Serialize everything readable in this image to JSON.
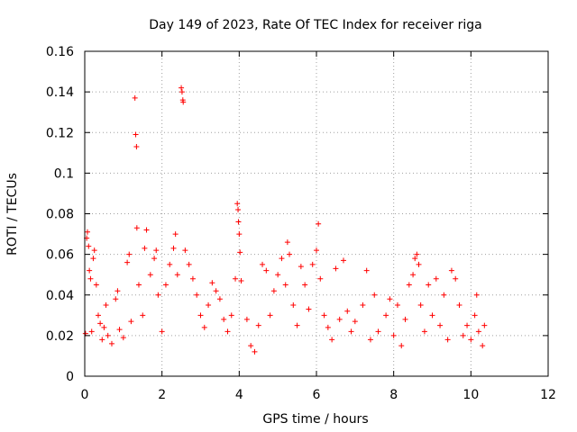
{
  "chart_data": {
    "type": "scatter",
    "title": "Day 149 of 2023, Rate Of TEC Index for receiver riga",
    "xlabel": "GPS time / hours",
    "ylabel": "ROTI / TECUs",
    "xlim": [
      0,
      12
    ],
    "ylim": [
      0,
      0.16
    ],
    "xticks": [
      0,
      2,
      4,
      6,
      8,
      10,
      12
    ],
    "yticks": [
      0,
      0.02,
      0.04,
      0.06,
      0.08,
      0.1,
      0.12,
      0.14,
      0.16
    ],
    "xtick_labels": [
      "0",
      "2",
      "4",
      "6",
      "8",
      "10",
      "12"
    ],
    "ytick_labels": [
      "0",
      "0.02",
      "0.04",
      "0.06",
      "0.08",
      "0.1",
      "0.12",
      "0.14",
      "0.16"
    ],
    "grid": true,
    "marker": "+",
    "color": "#ff0000",
    "series": [
      {
        "name": "ROTI",
        "points": [
          [
            0.02,
            0.021
          ],
          [
            0.05,
            0.068
          ],
          [
            0.07,
            0.071
          ],
          [
            0.1,
            0.064
          ],
          [
            0.12,
            0.052
          ],
          [
            0.15,
            0.048
          ],
          [
            0.18,
            0.022
          ],
          [
            0.22,
            0.058
          ],
          [
            0.25,
            0.062
          ],
          [
            0.3,
            0.045
          ],
          [
            0.35,
            0.03
          ],
          [
            0.4,
            0.026
          ],
          [
            0.45,
            0.018
          ],
          [
            0.5,
            0.024
          ],
          [
            0.55,
            0.035
          ],
          [
            0.6,
            0.02
          ],
          [
            0.7,
            0.016
          ],
          [
            0.8,
            0.038
          ],
          [
            0.85,
            0.042
          ],
          [
            0.9,
            0.023
          ],
          [
            1.0,
            0.019
          ],
          [
            1.1,
            0.056
          ],
          [
            1.15,
            0.06
          ],
          [
            1.2,
            0.027
          ],
          [
            1.3,
            0.137
          ],
          [
            1.32,
            0.119
          ],
          [
            1.34,
            0.113
          ],
          [
            1.35,
            0.073
          ],
          [
            1.4,
            0.045
          ],
          [
            1.5,
            0.03
          ],
          [
            1.55,
            0.063
          ],
          [
            1.6,
            0.072
          ],
          [
            1.7,
            0.05
          ],
          [
            1.8,
            0.058
          ],
          [
            1.85,
            0.062
          ],
          [
            1.9,
            0.04
          ],
          [
            2.0,
            0.022
          ],
          [
            2.1,
            0.045
          ],
          [
            2.2,
            0.055
          ],
          [
            2.3,
            0.063
          ],
          [
            2.35,
            0.07
          ],
          [
            2.4,
            0.05
          ],
          [
            2.5,
            0.142
          ],
          [
            2.52,
            0.14
          ],
          [
            2.54,
            0.136
          ],
          [
            2.55,
            0.135
          ],
          [
            2.6,
            0.062
          ],
          [
            2.7,
            0.055
          ],
          [
            2.8,
            0.048
          ],
          [
            2.9,
            0.04
          ],
          [
            3.0,
            0.03
          ],
          [
            3.1,
            0.024
          ],
          [
            3.2,
            0.035
          ],
          [
            3.3,
            0.046
          ],
          [
            3.4,
            0.042
          ],
          [
            3.5,
            0.038
          ],
          [
            3.6,
            0.028
          ],
          [
            3.7,
            0.022
          ],
          [
            3.8,
            0.03
          ],
          [
            3.9,
            0.048
          ],
          [
            3.95,
            0.085
          ],
          [
            3.97,
            0.082
          ],
          [
            3.98,
            0.076
          ],
          [
            4.0,
            0.07
          ],
          [
            4.02,
            0.061
          ],
          [
            4.05,
            0.047
          ],
          [
            4.2,
            0.028
          ],
          [
            4.3,
            0.015
          ],
          [
            4.4,
            0.012
          ],
          [
            4.5,
            0.025
          ],
          [
            4.6,
            0.055
          ],
          [
            4.7,
            0.052
          ],
          [
            4.8,
            0.03
          ],
          [
            4.9,
            0.042
          ],
          [
            5.0,
            0.05
          ],
          [
            5.1,
            0.058
          ],
          [
            5.2,
            0.045
          ],
          [
            5.25,
            0.066
          ],
          [
            5.3,
            0.06
          ],
          [
            5.4,
            0.035
          ],
          [
            5.5,
            0.025
          ],
          [
            5.6,
            0.054
          ],
          [
            5.7,
            0.045
          ],
          [
            5.8,
            0.033
          ],
          [
            5.9,
            0.055
          ],
          [
            6.0,
            0.062
          ],
          [
            6.05,
            0.075
          ],
          [
            6.1,
            0.048
          ],
          [
            6.2,
            0.03
          ],
          [
            6.3,
            0.024
          ],
          [
            6.4,
            0.018
          ],
          [
            6.5,
            0.053
          ],
          [
            6.6,
            0.028
          ],
          [
            6.7,
            0.057
          ],
          [
            6.8,
            0.032
          ],
          [
            6.9,
            0.022
          ],
          [
            7.0,
            0.027
          ],
          [
            7.2,
            0.035
          ],
          [
            7.3,
            0.052
          ],
          [
            7.4,
            0.018
          ],
          [
            7.5,
            0.04
          ],
          [
            7.6,
            0.022
          ],
          [
            7.8,
            0.03
          ],
          [
            7.9,
            0.038
          ],
          [
            8.0,
            0.02
          ],
          [
            8.1,
            0.035
          ],
          [
            8.2,
            0.015
          ],
          [
            8.3,
            0.028
          ],
          [
            8.4,
            0.045
          ],
          [
            8.5,
            0.05
          ],
          [
            8.55,
            0.058
          ],
          [
            8.6,
            0.06
          ],
          [
            8.65,
            0.055
          ],
          [
            8.7,
            0.035
          ],
          [
            8.8,
            0.022
          ],
          [
            8.9,
            0.045
          ],
          [
            9.0,
            0.03
          ],
          [
            9.1,
            0.048
          ],
          [
            9.2,
            0.025
          ],
          [
            9.3,
            0.04
          ],
          [
            9.4,
            0.018
          ],
          [
            9.5,
            0.052
          ],
          [
            9.6,
            0.048
          ],
          [
            9.7,
            0.035
          ],
          [
            9.8,
            0.02
          ],
          [
            9.9,
            0.025
          ],
          [
            10.0,
            0.018
          ],
          [
            10.1,
            0.03
          ],
          [
            10.15,
            0.04
          ],
          [
            10.2,
            0.022
          ],
          [
            10.3,
            0.015
          ],
          [
            10.35,
            0.025
          ]
        ]
      }
    ]
  }
}
